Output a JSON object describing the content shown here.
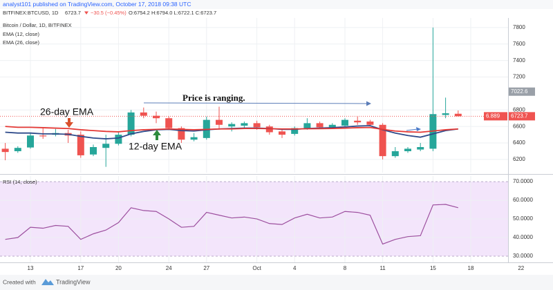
{
  "header": {
    "published": "analyst101 published on TradingView.com, October 17, 2018 09:38 UTC",
    "symbol": "BITFINEX:BTCUSD, 1D",
    "last": "6723.7",
    "change": "−30.5 (−0.45%)",
    "ohlc": "O:6754.2 H:6794.0 L:6722.1 C:6723.7"
  },
  "footer": {
    "created": "Created with",
    "brand": "TradingView"
  },
  "chart_data": [
    {
      "type": "candlestick",
      "title": "Bitcoin / Dollar, 1D, BITFINEX",
      "categories": [
        null,
        null,
        "13",
        null,
        null,
        null,
        "17",
        null,
        null,
        "20",
        null,
        null,
        null,
        "24",
        null,
        null,
        "27",
        null,
        null,
        null,
        "Oct",
        null,
        null,
        "4",
        null,
        null,
        null,
        "8",
        null,
        null,
        "11",
        null,
        null,
        null,
        "15",
        null,
        null,
        "18",
        null,
        null,
        null,
        "22"
      ],
      "open": [
        6330,
        6300,
        6345,
        6490,
        6500,
        6520,
        6500,
        6260,
        6340,
        6390,
        6500,
        6770,
        6730,
        6700,
        6580,
        6440,
        6460,
        6680,
        6600,
        6610,
        6640,
        6600,
        6540,
        6510,
        6580,
        6640,
        6590,
        6610,
        6670,
        6660,
        6620,
        6240,
        6300,
        6320,
        6330,
        6740,
        6754.2,
        null,
        null,
        null,
        null,
        null
      ],
      "high": [
        6400,
        6360,
        6520,
        6580,
        6570,
        6560,
        6540,
        6380,
        6500,
        6540,
        6800,
        6830,
        6780,
        6720,
        6600,
        6520,
        6720,
        6840,
        6650,
        6660,
        6670,
        6620,
        6570,
        6600,
        6700,
        6660,
        6640,
        6700,
        6720,
        6680,
        6640,
        6350,
        6350,
        6400,
        7800,
        6950,
        6794.0,
        null,
        null,
        null,
        null,
        null
      ],
      "low": [
        6190,
        6280,
        6330,
        6450,
        6480,
        6400,
        6220,
        6240,
        6110,
        6370,
        6480,
        6700,
        6640,
        6560,
        6400,
        6420,
        6440,
        6560,
        6540,
        6570,
        6560,
        6500,
        6460,
        6490,
        6560,
        6570,
        6570,
        6590,
        6620,
        6600,
        6200,
        6220,
        6280,
        6300,
        6300,
        6700,
        6722.1,
        null,
        null,
        null,
        null,
        null
      ],
      "close": [
        6290,
        6340,
        6490,
        6480,
        6520,
        6490,
        6250,
        6350,
        6390,
        6500,
        6770,
        6730,
        6700,
        6580,
        6440,
        6470,
        6680,
        6620,
        6630,
        6640,
        6590,
        6530,
        6500,
        6580,
        6640,
        6590,
        6620,
        6680,
        6650,
        6620,
        6240,
        6300,
        6330,
        6350,
        6750,
        6760,
        6723.7,
        null,
        null,
        null,
        null,
        null
      ],
      "up_color": "#26a69a",
      "down_color": "#ef5350",
      "series": [
        {
          "name": "EMA (12, close)",
          "color": "#2e4a8a",
          "values": [
            6530,
            6520,
            6520,
            6510,
            6510,
            6505,
            6480,
            6460,
            6450,
            6460,
            6510,
            6540,
            6560,
            6565,
            6550,
            6545,
            6560,
            6570,
            6575,
            6580,
            6580,
            6575,
            6565,
            6565,
            6575,
            6580,
            6585,
            6595,
            6605,
            6610,
            6560,
            6520,
            6490,
            6470,
            6510,
            6550,
            6570,
            null,
            null,
            null,
            null,
            null
          ]
        },
        {
          "name": "EMA (26, close)",
          "color": "#e53935",
          "values": [
            6600,
            6590,
            6590,
            6585,
            6580,
            6575,
            6560,
            6550,
            6540,
            6535,
            6550,
            6560,
            6565,
            6570,
            6565,
            6560,
            6565,
            6570,
            6570,
            6575,
            6575,
            6573,
            6570,
            6570,
            6572,
            6573,
            6575,
            6580,
            6585,
            6588,
            6565,
            6545,
            6535,
            6530,
            6545,
            6560,
            6570,
            null,
            null,
            null,
            null,
            null
          ]
        }
      ],
      "ylim": [
        6040,
        7900
      ],
      "yticks": [
        6200,
        6400,
        6600,
        6800,
        7200,
        7400,
        7600,
        7800
      ],
      "grid": true,
      "price_labels": [
        {
          "value": 7022.6,
          "label": "7022.6"
        },
        {
          "value": 6723.7,
          "label": "6723.7"
        }
      ],
      "annotations": [
        "Price is ranging.",
        "26-day EMA",
        "12-day EMA",
        "6.889"
      ]
    },
    {
      "type": "line",
      "title": "RSI (14, close)",
      "color": "#9c4f9e",
      "band_color": "#f3e5fb",
      "values": [
        39,
        40,
        45.5,
        45,
        46.5,
        46,
        39,
        42,
        44,
        48,
        56,
        54.5,
        54,
        50,
        45.5,
        46,
        53.5,
        52,
        50.5,
        51,
        50,
        47.5,
        47,
        50.5,
        52.5,
        50.5,
        51,
        54,
        53.5,
        52,
        36.5,
        39,
        40.5,
        41,
        57.5,
        57.8,
        56,
        null,
        null,
        null,
        null,
        null
      ],
      "band": [
        30,
        70
      ],
      "ylim": [
        27.4,
        73
      ],
      "yticks": [
        {
          "value": 30,
          "label": "30.0000"
        },
        {
          "value": 40,
          "label": "40.0000"
        },
        {
          "value": 50,
          "label": "50.0000"
        },
        {
          "value": 60,
          "label": "60.0000"
        },
        {
          "value": 70,
          "label": "70.0000"
        }
      ]
    }
  ]
}
